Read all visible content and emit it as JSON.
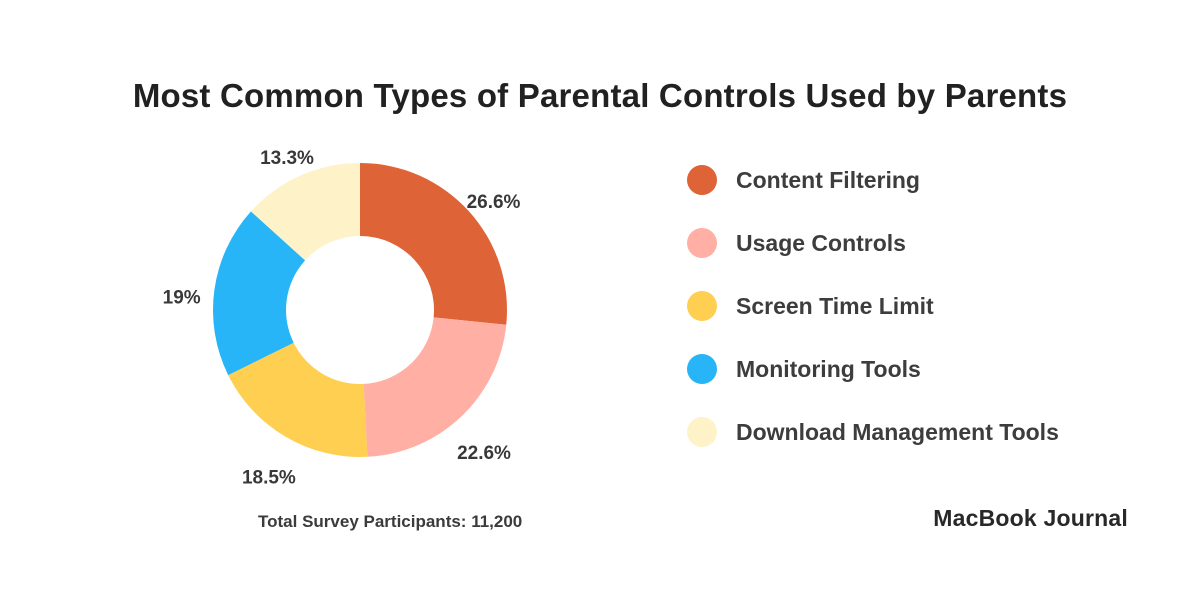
{
  "page": {
    "title": "Most Common Types of Parental Controls Used by Parents",
    "footnote": "Total Survey Participants: 11,200",
    "brand": "MacBook Journal"
  },
  "chart_data": {
    "type": "pie",
    "subtype": "donut",
    "title": "Most Common Types of Parental Controls Used by Parents",
    "start_angle_deg": 0,
    "direction": "clockwise",
    "legend_position": "right",
    "total_participants_label": "Total Survey Participants: 11,200",
    "total_participants": 11200,
    "segments": [
      {
        "name": "Content Filtering",
        "value": 26.6,
        "label": "26.6%",
        "color": "#DE6336"
      },
      {
        "name": "Usage Controls",
        "value": 22.6,
        "label": "22.6%",
        "color": "#FFAFA3"
      },
      {
        "name": "Screen Time Limit",
        "value": 18.5,
        "label": "18.5%",
        "color": "#FECF51"
      },
      {
        "name": "Monitoring Tools",
        "value": 19,
        "label": "19%",
        "color": "#27B5F8"
      },
      {
        "name": "Download Management Tools",
        "value": 13.3,
        "label": "13.3%",
        "color": "#FDF2C8"
      }
    ]
  }
}
